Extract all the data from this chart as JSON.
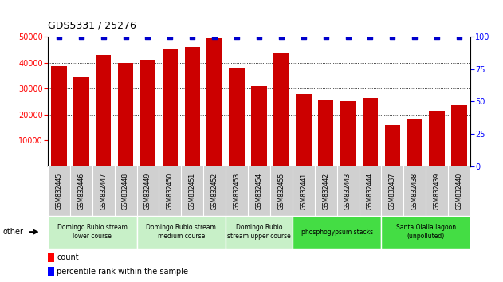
{
  "title": "GDS5331 / 25276",
  "samples": [
    "GSM832445",
    "GSM832446",
    "GSM832447",
    "GSM832448",
    "GSM832449",
    "GSM832450",
    "GSM832451",
    "GSM832452",
    "GSM832453",
    "GSM832454",
    "GSM832455",
    "GSM832441",
    "GSM832442",
    "GSM832443",
    "GSM832444",
    "GSM832437",
    "GSM832438",
    "GSM832439",
    "GSM832440"
  ],
  "counts": [
    38500,
    34500,
    43000,
    40000,
    41000,
    45500,
    46000,
    49500,
    38000,
    31000,
    43500,
    28000,
    25500,
    25000,
    26500,
    16000,
    18500,
    21500,
    23500
  ],
  "percentile": [
    100,
    100,
    100,
    100,
    100,
    100,
    100,
    100,
    100,
    100,
    100,
    100,
    100,
    100,
    100,
    100,
    100,
    100,
    100
  ],
  "bar_color": "#cc0000",
  "dot_color": "#0000cc",
  "ylim_left": [
    0,
    50000
  ],
  "ylim_right": [
    0,
    100
  ],
  "yticks_left": [
    10000,
    20000,
    30000,
    40000,
    50000
  ],
  "yticks_right": [
    0,
    25,
    50,
    75,
    100
  ],
  "groups": [
    {
      "label": "Domingo Rubio stream\nlower course",
      "start": 0,
      "end": 4,
      "color": "#c8f0c8"
    },
    {
      "label": "Domingo Rubio stream\nmedium course",
      "start": 4,
      "end": 8,
      "color": "#c8f0c8"
    },
    {
      "label": "Domingo Rubio\nstream upper course",
      "start": 8,
      "end": 11,
      "color": "#c8f0c8"
    },
    {
      "label": "phosphogypsum stacks",
      "start": 11,
      "end": 15,
      "color": "#44dd44"
    },
    {
      "label": "Santa Olalla lagoon\n(unpolluted)",
      "start": 15,
      "end": 19,
      "color": "#44dd44"
    }
  ],
  "other_label": "other",
  "legend_count_label": "count",
  "legend_pct_label": "percentile rank within the sample",
  "tick_bg_color": "#d0d0d0",
  "plot_bg_color": "#ffffff",
  "grid_lines": [
    20000,
    30000,
    40000,
    50000
  ]
}
